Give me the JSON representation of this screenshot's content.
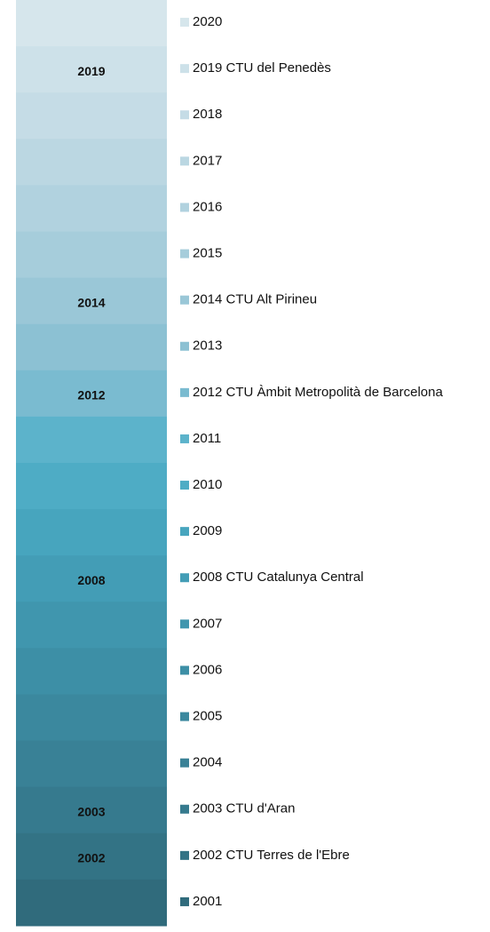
{
  "items": [
    {
      "legend": "2020",
      "color": "#d6e6ec"
    },
    {
      "legend": "2019 CTU del Penedès",
      "band_label": "2019",
      "color": "#cde1e9"
    },
    {
      "legend": "2018",
      "color": "#c5dce6"
    },
    {
      "legend": "2017",
      "color": "#bbd7e2"
    },
    {
      "legend": "2016",
      "color": "#b1d2df"
    },
    {
      "legend": "2015",
      "color": "#a6cddb"
    },
    {
      "legend": "2014 CTU Alt Pirineu",
      "band_label": "2014",
      "color": "#9ac7d7"
    },
    {
      "legend": "2013",
      "color": "#8cc1d3"
    },
    {
      "legend": "2012 CTU Àmbit Metropolità de Barcelona",
      "band_label": "2012",
      "color": "#7abbd0"
    },
    {
      "legend": "2011",
      "color": "#5cb3cb"
    },
    {
      "legend": "2010",
      "color": "#4eacc5"
    },
    {
      "legend": "2009",
      "color": "#47a5be"
    },
    {
      "legend": "2008 CTU Catalunya Central",
      "band_label": "2008",
      "color": "#439db6"
    },
    {
      "legend": "2007",
      "color": "#4096ae"
    },
    {
      "legend": "2006",
      "color": "#3d8fa6"
    },
    {
      "legend": "2005",
      "color": "#3b889e"
    },
    {
      "legend": "2004",
      "color": "#398196"
    },
    {
      "legend": "2003 CTU d'Aran",
      "band_label": "2003",
      "color": "#367a8e"
    },
    {
      "legend": "2002 CTU Terres de l'Ebre",
      "band_label": "2002",
      "color": "#337385"
    },
    {
      "legend": "2001",
      "color": "#306b7c"
    }
  ]
}
